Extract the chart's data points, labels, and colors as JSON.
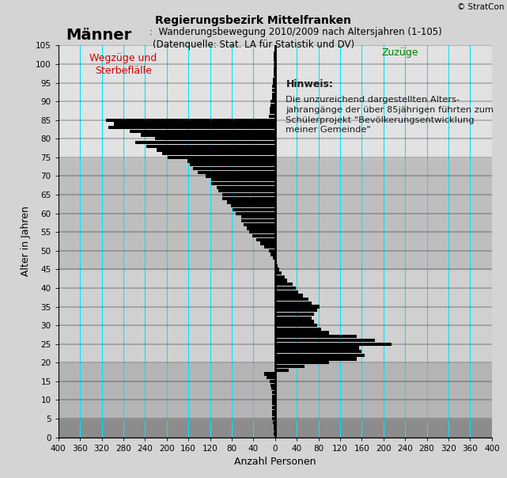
{
  "title_main": "Regierungsbezirk Mittelfranken",
  "title_bold": "Männer",
  "title_rest": ":  Wanderungsbewegung 2010/2009 nach Altersjahren (1-105)",
  "title_sub": "(Datenquelle: Stat. LA für Statistik und DV)",
  "xlabel": "Anzahl Personen",
  "ylabel": "Alter in Jahren",
  "copyright": "© StratCon",
  "label_left": "Wegzüge und\nSterbeflälle",
  "label_right": "Zuzüge",
  "hint_title": "Hinweis:",
  "hint_text": "Die unzureichend dargestellten Alters-\njahrangänge der über 85jährigen führten zum\nSchülerprojekt \"Bevölkerungsentwicklung\nmeiner Gemeinde\"",
  "xlim": [
    -400,
    400
  ],
  "ylim": [
    0,
    105
  ],
  "xticks": [
    -400,
    -360,
    -320,
    -280,
    -240,
    -200,
    -160,
    -120,
    -80,
    -40,
    0,
    40,
    80,
    120,
    160,
    200,
    240,
    280,
    320,
    360,
    400
  ],
  "xticklabels": [
    "400",
    "360",
    "320",
    "280",
    "240",
    "200",
    "160",
    "120",
    "80",
    "40",
    "0",
    "40",
    "80",
    "120",
    "160",
    "200",
    "240",
    "280",
    "320",
    "360",
    "400"
  ],
  "yticks": [
    0,
    5,
    10,
    15,
    20,
    25,
    30,
    35,
    40,
    45,
    50,
    55,
    60,
    65,
    70,
    75,
    80,
    85,
    90,
    95,
    100,
    105
  ],
  "bg_color": "#d4d4d4",
  "bar_color": "#000000",
  "grid_color": "#00e5ff",
  "band_defs": [
    [
      0,
      5,
      "#8c8c8c"
    ],
    [
      5,
      20,
      "#b4b4b4"
    ],
    [
      20,
      45,
      "#d0d0d0"
    ],
    [
      45,
      75,
      "#bebebe"
    ],
    [
      75,
      105,
      "#e2e2e2"
    ]
  ],
  "values": {
    "1": -2,
    "2": -2,
    "3": -3,
    "4": -4,
    "5": -6,
    "6": -5,
    "7": -5,
    "8": -5,
    "9": -5,
    "10": -6,
    "11": -6,
    "12": -5,
    "13": -7,
    "14": -8,
    "15": -10,
    "16": -15,
    "17": -20,
    "18": 25,
    "19": 55,
    "20": 100,
    "21": 150,
    "22": 165,
    "23": 160,
    "24": 155,
    "25": 215,
    "26": 185,
    "27": 150,
    "28": 100,
    "29": 85,
    "30": 78,
    "31": 72,
    "32": 68,
    "33": 72,
    "34": 78,
    "35": 82,
    "36": 68,
    "37": 62,
    "38": 52,
    "39": 42,
    "40": 38,
    "41": 32,
    "42": 22,
    "43": 18,
    "44": 12,
    "45": 8,
    "46": 5,
    "47": 4,
    "48": -4,
    "49": -8,
    "50": -12,
    "51": -20,
    "52": -28,
    "53": -35,
    "54": -42,
    "55": -48,
    "56": -52,
    "57": -58,
    "58": -62,
    "59": -63,
    "60": -72,
    "61": -78,
    "62": -82,
    "63": -88,
    "64": -98,
    "65": -98,
    "66": -105,
    "67": -108,
    "68": -118,
    "69": -118,
    "70": -128,
    "71": -142,
    "72": -152,
    "73": -158,
    "74": -162,
    "75": -198,
    "76": -208,
    "77": -218,
    "78": -238,
    "79": -258,
    "80": -222,
    "81": -248,
    "82": -268,
    "83": -308,
    "84": -298,
    "85": -312,
    "86": -12,
    "87": -10,
    "88": -10,
    "89": -8,
    "90": -8,
    "91": -6,
    "92": -6,
    "93": -5,
    "94": -5,
    "95": -4,
    "96": -4,
    "97": -3,
    "98": -3,
    "99": -3,
    "100": -2,
    "101": -2,
    "102": -2,
    "103": -2,
    "104": -1,
    "105": -1
  }
}
